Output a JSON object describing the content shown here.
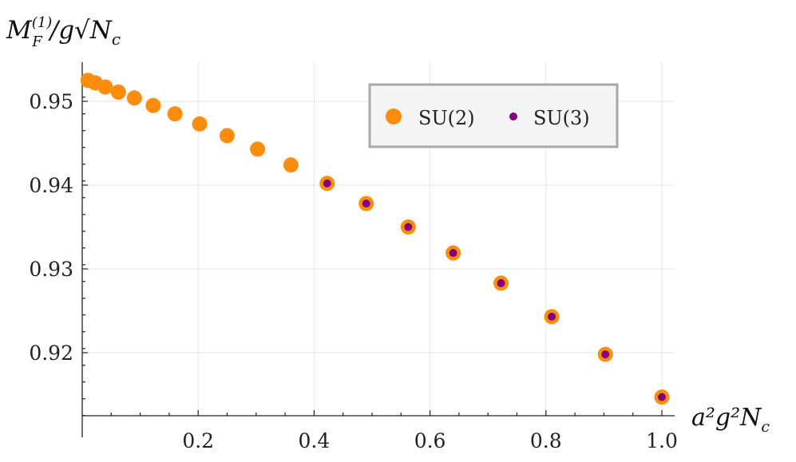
{
  "chart_data": {
    "type": "scatter",
    "xlabel": "a²g²N",
    "xlabel_sub": "c",
    "ylabel": "M",
    "ylabel_sup": "(1)",
    "ylabel_sub": "F",
    "ylabel_tail": "/g√N",
    "ylabel_tail_sub": "c",
    "xlim": [
      0,
      1.0
    ],
    "ylim": [
      0.9125,
      0.9555
    ],
    "x_ticks": [
      0.2,
      0.4,
      0.6,
      0.8,
      1.0
    ],
    "x_tick_labels": [
      "0.2",
      "0.4",
      "0.6",
      "0.8",
      "1.0"
    ],
    "y_ticks": [
      0.92,
      0.93,
      0.94,
      0.95
    ],
    "y_tick_labels": [
      "0.92",
      "0.93",
      "0.94",
      "0.95"
    ],
    "grid": true,
    "legend_position": "top-right",
    "series": [
      {
        "name": "SU(2)",
        "color": "#ff8c0a",
        "marker": "large-circle",
        "x": [
          0.01,
          0.0225,
          0.04,
          0.0625,
          0.09,
          0.1225,
          0.16,
          0.2025,
          0.25,
          0.3025,
          0.36,
          0.4225,
          0.49,
          0.5625,
          0.64,
          0.7225,
          0.81,
          0.9025,
          1.0
        ],
        "y": [
          0.9525,
          0.9522,
          0.9517,
          0.9511,
          0.9504,
          0.9495,
          0.9485,
          0.9473,
          0.9459,
          0.9443,
          0.9424,
          0.9402,
          0.9378,
          0.935,
          0.9319,
          0.9283,
          0.9243,
          0.9198,
          0.9147
        ]
      },
      {
        "name": "SU(3)",
        "color": "#800080",
        "marker": "small-circle",
        "x": [
          0.4225,
          0.49,
          0.5625,
          0.64,
          0.7225,
          0.81,
          0.9025,
          1.0
        ],
        "y": [
          0.9402,
          0.9378,
          0.935,
          0.9319,
          0.9283,
          0.9243,
          0.9198,
          0.9147
        ]
      }
    ]
  }
}
